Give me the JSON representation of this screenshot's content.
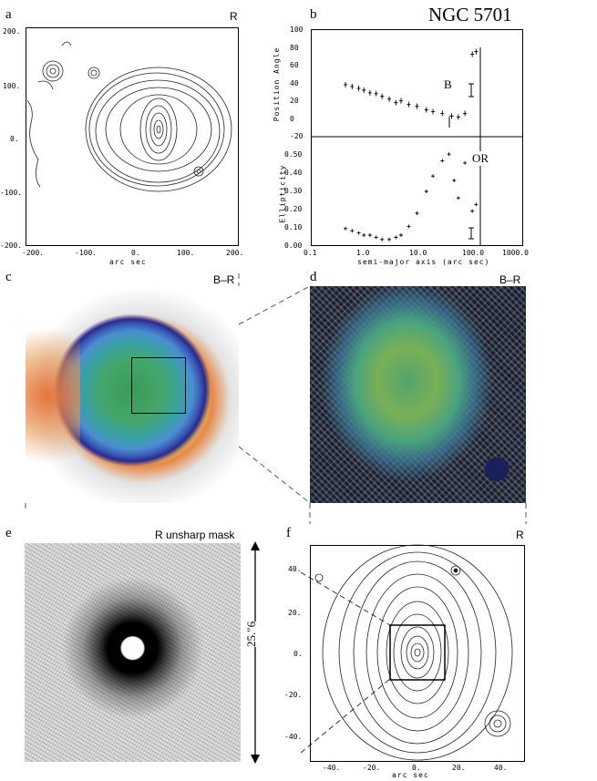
{
  "title": "NGC 5701",
  "panels": {
    "a": {
      "letter": "a",
      "band": "R",
      "ticks_x": [
        "-200.",
        "-100.",
        "0.",
        "100.",
        "200."
      ],
      "ticks_y": [
        "200.",
        "100.",
        "0.",
        "-100.",
        "-200."
      ],
      "xlabel": "arc sec"
    },
    "b": {
      "letter": "b",
      "band": "",
      "pa_label": "Position Angle",
      "ell_label": "Ellipticity",
      "pa_ticks": [
        "100",
        "80",
        "60",
        "40",
        "20",
        "0",
        "-20"
      ],
      "ell_ticks": [
        "0.50",
        "0.40",
        "0.30",
        "0.20",
        "0.10",
        "0.00"
      ],
      "x_ticks": [
        "0.1",
        "1.0",
        "10.0",
        "100.0",
        "1000.0"
      ],
      "xlabel": "semi-major axis (arc sec)",
      "marker_b": "B",
      "marker_or": "OR"
    },
    "c": {
      "letter": "c",
      "band": "B–R"
    },
    "d": {
      "letter": "d",
      "band": "B–R"
    },
    "e": {
      "letter": "e",
      "band": "R unsharp mask",
      "scale": "25.″6"
    },
    "f": {
      "letter": "f",
      "band": "R",
      "ticks_x": [
        "-40.",
        "-20.",
        "0.",
        "20.",
        "40."
      ],
      "ticks_y": [
        "40.",
        "20.",
        "0.",
        "-20.",
        "-40."
      ],
      "xlabel": "arc sec"
    }
  },
  "chart_data": [
    {
      "type": "scatter",
      "name": "position angle profile",
      "x_scale": "log",
      "xlim": [
        0.1,
        1000
      ],
      "ylim": [
        -20,
        100
      ],
      "x": [
        0.45,
        0.6,
        0.8,
        1.0,
        1.3,
        1.7,
        2.2,
        3.0,
        4.0,
        5.0,
        7.0,
        10.0,
        15.0,
        20.0,
        30.0,
        45.0,
        60.0,
        80.0,
        110.0,
        130.0
      ],
      "y": [
        38,
        36,
        34,
        32,
        29,
        28,
        25,
        22,
        18,
        20,
        16,
        14,
        10,
        8,
        6,
        3,
        2,
        6,
        72,
        75
      ]
    },
    {
      "type": "scatter",
      "name": "ellipticity profile",
      "x_scale": "log",
      "xlim": [
        0.1,
        1000
      ],
      "ylim": [
        0.0,
        0.5
      ],
      "x": [
        0.45,
        0.6,
        0.8,
        1.0,
        1.3,
        1.7,
        2.2,
        3.0,
        4.0,
        5.0,
        7.0,
        10.0,
        15.0,
        20.0,
        30.0,
        40.0,
        50.0,
        60.0,
        80.0,
        110.0,
        130.0
      ],
      "y": [
        0.08,
        0.07,
        0.06,
        0.05,
        0.05,
        0.04,
        0.03,
        0.03,
        0.04,
        0.05,
        0.09,
        0.15,
        0.25,
        0.32,
        0.39,
        0.42,
        0.3,
        0.22,
        0.38,
        0.16,
        0.19
      ]
    }
  ]
}
